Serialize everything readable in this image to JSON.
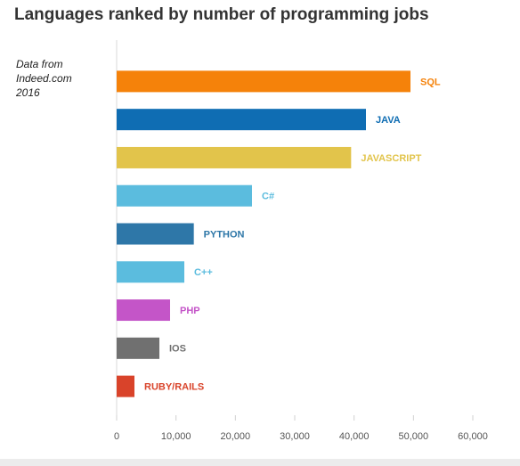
{
  "chart_data": {
    "type": "bar",
    "orientation": "horizontal",
    "title": "Languages ranked by number of programming jobs",
    "note": "Data from Indeed.com 2016",
    "categories": [
      "SQL",
      "JAVA",
      "JAVASCRIPT",
      "C#",
      "PYTHON",
      "C++",
      "PHP",
      "IOS",
      "RUBY/RAILS"
    ],
    "values": [
      49500,
      42000,
      39500,
      22800,
      13000,
      11400,
      9000,
      7200,
      3000
    ],
    "colors": [
      "#f5820a",
      "#0f6db3",
      "#e2c44b",
      "#5bbcde",
      "#2e77a8",
      "#5bbcde",
      "#c455c8",
      "#707070",
      "#d9432a"
    ],
    "xlim": [
      0,
      60000
    ],
    "xticks": [
      0,
      {
        "value": 10000,
        "label": "10,000"
      },
      {
        "value": 20000,
        "label": "20,000"
      },
      {
        "value": 30000,
        "label": "30,000"
      },
      {
        "value": 40000,
        "label": "40,000"
      },
      {
        "value": 50000,
        "label": "50,000"
      },
      {
        "value": 60000,
        "label": "60,000"
      }
    ],
    "grid": false
  }
}
